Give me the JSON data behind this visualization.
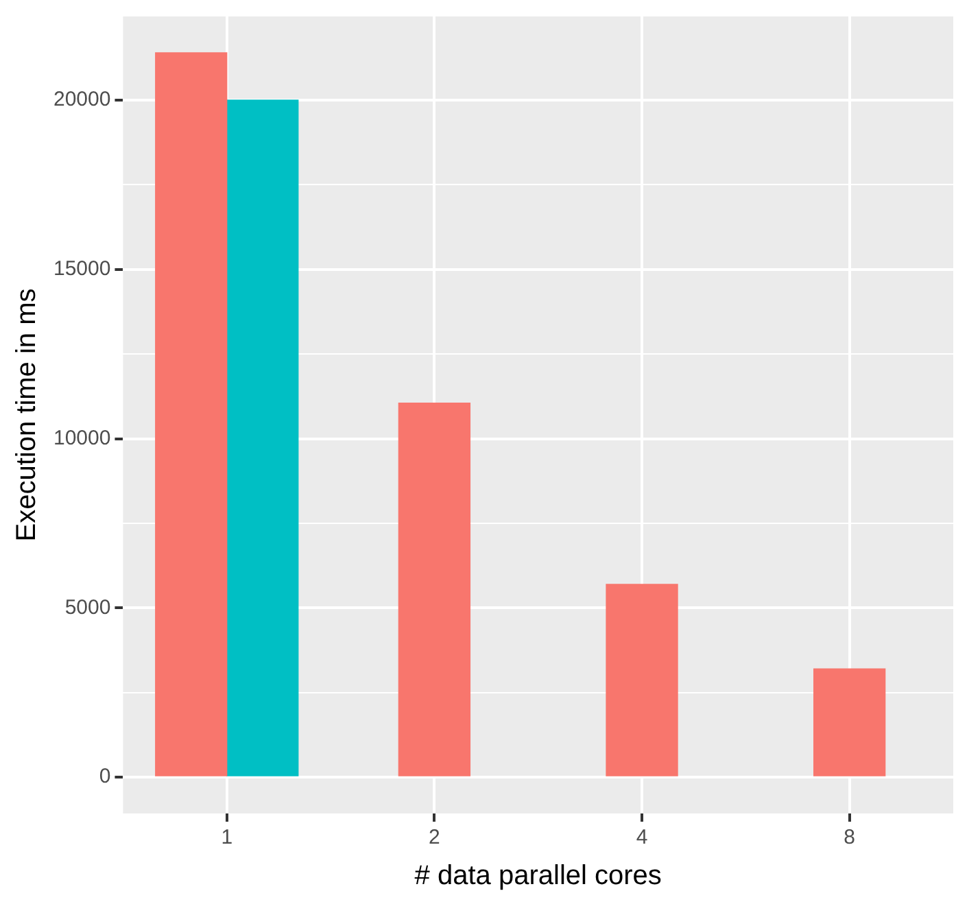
{
  "chart_data": {
    "type": "bar",
    "xlabel": "# data parallel cores",
    "ylabel": "Execution time in ms",
    "categories": [
      "1",
      "2",
      "4",
      "8"
    ],
    "series": [
      {
        "color": "#f8766d",
        "values": [
          21400,
          11050,
          5700,
          3200
        ]
      },
      {
        "color": "#00bfc4",
        "values": [
          20000,
          null,
          null,
          null
        ]
      }
    ],
    "ylim": [
      -1070,
      22470
    ],
    "yticks": [
      0,
      {
        "value": 2500,
        "label": null
      },
      5000,
      {
        "value": 7500,
        "label": null
      },
      10000,
      {
        "value": 12500,
        "label": null
      },
      15000,
      {
        "value": 17500,
        "label": null
      },
      20000
    ],
    "grid": true,
    "legend": false
  }
}
